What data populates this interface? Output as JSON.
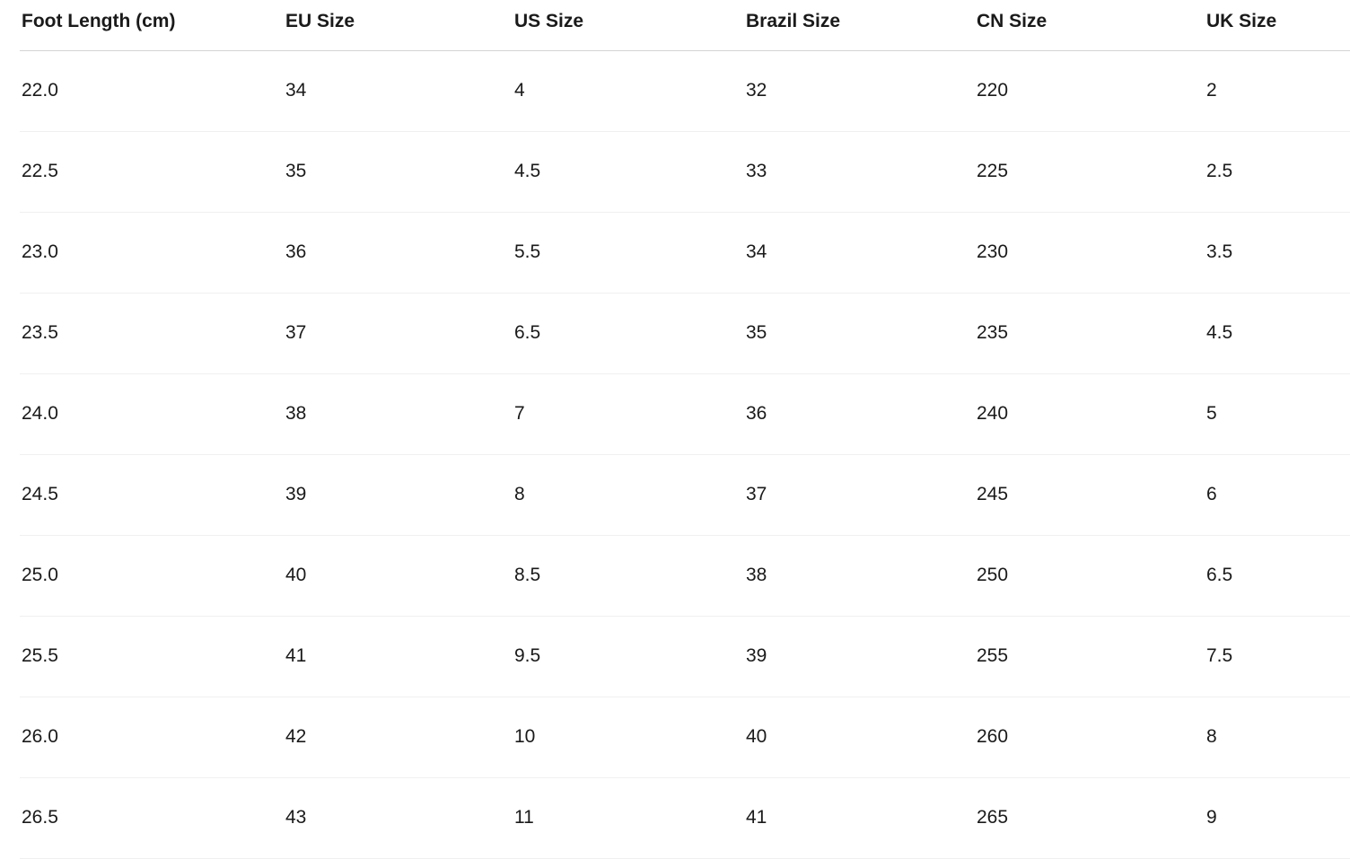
{
  "table": {
    "columns": [
      "Foot Length (cm)",
      "EU Size",
      "US Size",
      "Brazil Size",
      "CN Size",
      "UK Size"
    ],
    "rows": [
      [
        "22.0",
        "34",
        "4",
        "32",
        "220",
        "2"
      ],
      [
        "22.5",
        "35",
        "4.5",
        "33",
        "225",
        "2.5"
      ],
      [
        "23.0",
        "36",
        "5.5",
        "34",
        "230",
        "3.5"
      ],
      [
        "23.5",
        "37",
        "6.5",
        "35",
        "235",
        "4.5"
      ],
      [
        "24.0",
        "38",
        "7",
        "36",
        "240",
        "5"
      ],
      [
        "24.5",
        "39",
        "8",
        "37",
        "245",
        "6"
      ],
      [
        "25.0",
        "40",
        "8.5",
        "38",
        "250",
        "6.5"
      ],
      [
        "25.5",
        "41",
        "9.5",
        "39",
        "255",
        "7.5"
      ],
      [
        "26.0",
        "42",
        "10",
        "40",
        "260",
        "8"
      ],
      [
        "26.5",
        "43",
        "11",
        "41",
        "265",
        "9"
      ]
    ],
    "colors": {
      "background": "#ffffff",
      "text": "#1a1a1a",
      "header_border": "#d4d4d4",
      "row_border": "#f0f0f0"
    }
  }
}
